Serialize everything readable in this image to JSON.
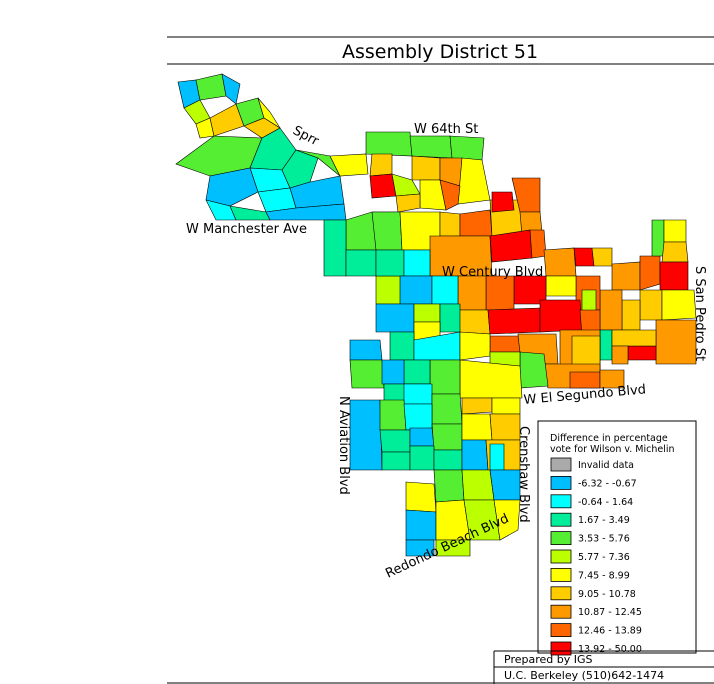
{
  "title": "Assembly District 51",
  "streets": {
    "sprr": "Sprr",
    "w64th": "W 64th St",
    "manchester": "W Manchester Ave",
    "century": "W Century Blvd",
    "san_pedro": "S San Pedro St",
    "el_segundo": "W El Segundo Blvd",
    "aviation": "N Aviation Blvd",
    "crenshaw": "Crenshaw Blvd",
    "redondo": "Redondo Beach Blvd"
  },
  "legend": {
    "title_line1": "Difference in percentage",
    "title_line2": "vote for Wilson v. Michelin",
    "items": [
      {
        "label": "Invalid data",
        "color": "#aaaaaa"
      },
      {
        "label": "-6.32 -  -0.67",
        "color": "#00bfff"
      },
      {
        "label": "-0.64 -  1.64",
        "color": "#00ffff"
      },
      {
        "label": "1.67 -  3.49",
        "color": "#00ee99"
      },
      {
        "label": "3.53 -  5.76",
        "color": "#55ee33"
      },
      {
        "label": "5.77 -  7.36",
        "color": "#bbff00"
      },
      {
        "label": "7.45 -  8.99",
        "color": "#ffff00"
      },
      {
        "label": "9.05 - 10.78",
        "color": "#ffcc00"
      },
      {
        "label": "10.87 - 12.45",
        "color": "#ff9900"
      },
      {
        "label": "12.46 - 13.89",
        "color": "#ff6600"
      },
      {
        "label": "13.92 - 50.00",
        "color": "#ff0000"
      }
    ]
  },
  "credits": {
    "line1": "Prepared by IGS",
    "line2": "U.C. Berkeley (510)642-1474"
  }
}
